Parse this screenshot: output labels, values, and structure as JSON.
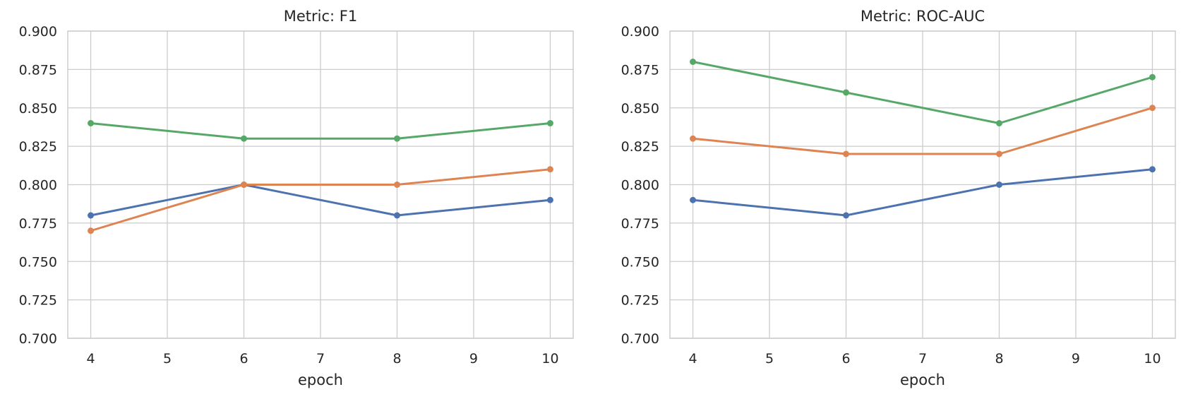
{
  "figure": {
    "background": "#ffffff",
    "grid_color": "#cccccc",
    "spine_color": "#c9c9c9",
    "text_color": "#262626",
    "palette": {
      "blue": "#4C72B0",
      "orange": "#DD8452",
      "green": "#55A868"
    }
  },
  "chart_data": [
    {
      "type": "line",
      "title": "Metric: F1",
      "xlabel": "epoch",
      "ylabel": "",
      "x": [
        4,
        6,
        8,
        10
      ],
      "x_ticks": [
        4,
        5,
        6,
        7,
        8,
        9,
        10
      ],
      "y_ticks": [
        0.7,
        0.725,
        0.75,
        0.775,
        0.8,
        0.825,
        0.85,
        0.875,
        0.9
      ],
      "y_tick_labels": [
        "0.700",
        "0.725",
        "0.750",
        "0.775",
        "0.800",
        "0.825",
        "0.850",
        "0.875",
        "0.900"
      ],
      "xlim": [
        3.7,
        10.3
      ],
      "ylim": [
        0.7,
        0.9
      ],
      "grid": true,
      "legend": false,
      "markers": true,
      "series": [
        {
          "name": "blue-series",
          "color": "#4C72B0",
          "values": [
            0.78,
            0.8,
            0.78,
            0.79
          ]
        },
        {
          "name": "orange-series",
          "color": "#DD8452",
          "values": [
            0.77,
            0.8,
            0.8,
            0.81
          ]
        },
        {
          "name": "green-series",
          "color": "#55A868",
          "values": [
            0.84,
            0.83,
            0.83,
            0.84
          ]
        }
      ]
    },
    {
      "type": "line",
      "title": "Metric: ROC-AUC",
      "xlabel": "epoch",
      "ylabel": "",
      "x": [
        4,
        6,
        8,
        10
      ],
      "x_ticks": [
        4,
        5,
        6,
        7,
        8,
        9,
        10
      ],
      "y_ticks": [
        0.7,
        0.725,
        0.75,
        0.775,
        0.8,
        0.825,
        0.85,
        0.875,
        0.9
      ],
      "y_tick_labels": [
        "0.700",
        "0.725",
        "0.750",
        "0.775",
        "0.800",
        "0.825",
        "0.850",
        "0.875",
        "0.900"
      ],
      "xlim": [
        3.7,
        10.3
      ],
      "ylim": [
        0.7,
        0.9
      ],
      "grid": true,
      "legend": false,
      "markers": true,
      "series": [
        {
          "name": "blue-series",
          "color": "#4C72B0",
          "values": [
            0.79,
            0.78,
            0.8,
            0.81
          ]
        },
        {
          "name": "orange-series",
          "color": "#DD8452",
          "values": [
            0.83,
            0.82,
            0.82,
            0.85
          ]
        },
        {
          "name": "green-series",
          "color": "#55A868",
          "values": [
            0.88,
            0.86,
            0.84,
            0.87
          ]
        }
      ]
    }
  ]
}
